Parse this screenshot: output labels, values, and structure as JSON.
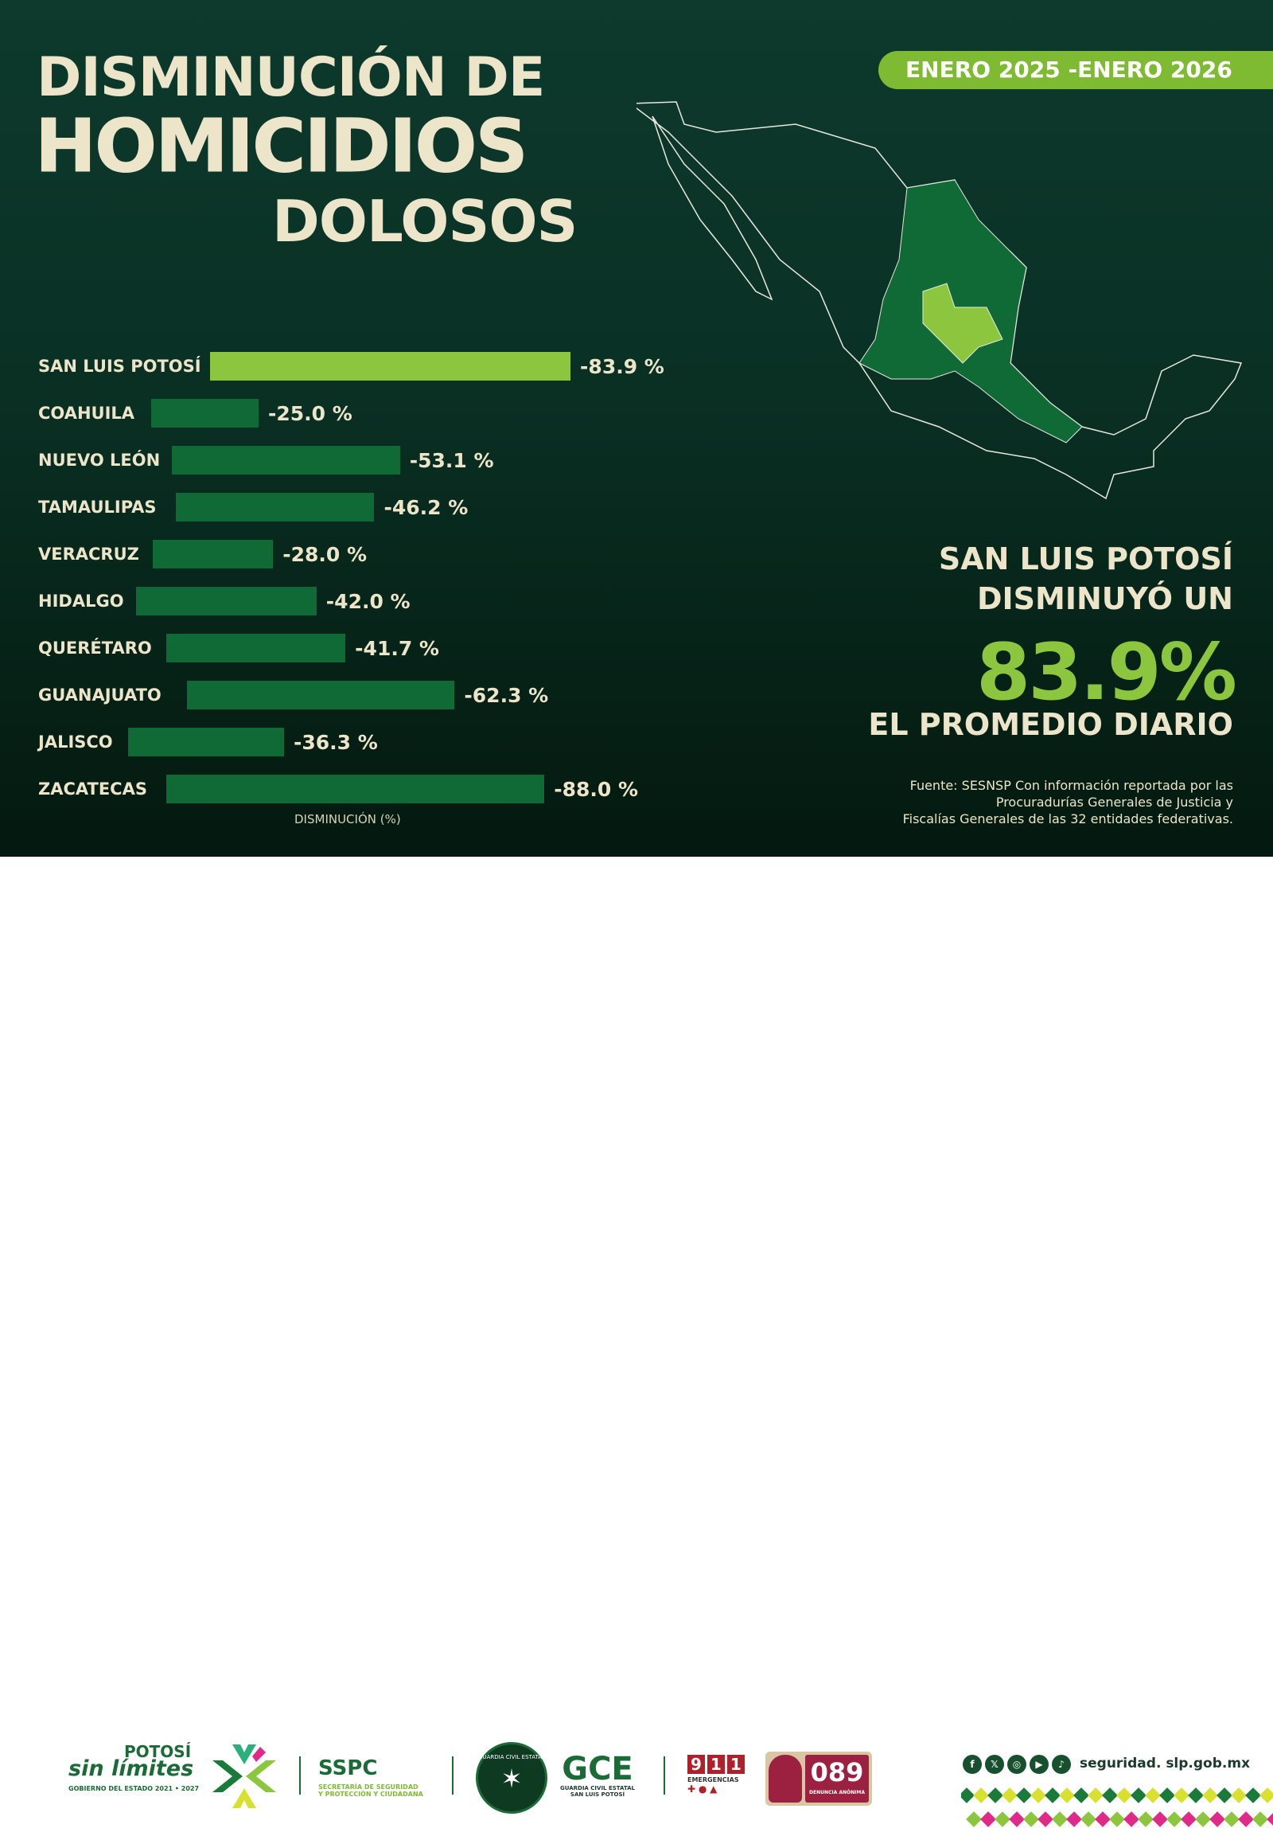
{
  "title": {
    "line1": "DISMINUCIÓN DE",
    "line2": "HOMICIDIOS",
    "line3": "DOLOSOS"
  },
  "period": "ENERO 2025 -ENERO 2026",
  "chart_data": {
    "type": "bar",
    "orientation": "horizontal",
    "categories": [
      "SAN LUIS POTOSÍ",
      "COAHUILA",
      "NUEVO LEÓN",
      "TAMAULIPAS",
      "VERACRUZ",
      "HIDALGO",
      "QUERÉTARO",
      "GUANAJUATO",
      "JALISCO",
      "ZACATECAS"
    ],
    "values": [
      -83.9,
      -25.0,
      -53.1,
      -46.2,
      -28.0,
      -42.0,
      -41.7,
      -62.3,
      -36.3,
      -88.0
    ],
    "labels": [
      "-83.9 %",
      "-25.0 %",
      "-53.1 %",
      "-46.2 %",
      "-28.0 %",
      "-42.0 %",
      "-41.7 %",
      "-62.3 %",
      "-36.3 %",
      "-88.0 %"
    ],
    "xlabel": "DISMINUCIÓN (%)",
    "colors": {
      "highlight": "#8cc63f",
      "default": "#0f6a35"
    }
  },
  "summary": {
    "line1": "SAN LUIS POTOSÍ",
    "line2": "DISMINUYÓ UN",
    "value": "83.9%",
    "line3": "EL PROMEDIO DIARIO"
  },
  "source": [
    "Fuente: SESNSP Con información reportada por las",
    "Procuradurías Generales de Justicia y",
    "Fiscalías Generales de las 32 entidades federativas."
  ],
  "footer": {
    "logo1": {
      "top": "POTOSÍ",
      "main": "sin límites",
      "sub": "GOBIERNO DEL ESTADO 2021 • 2027"
    },
    "sspc": {
      "title": "SSPC",
      "sub1": "SECRETARÍA DE SEGURIDAD",
      "sub2": "Y PROTECCIÓN Y CIUDADANA"
    },
    "gce": {
      "seal": "GUARDIA CIVIL ESTATAL",
      "title": "GCE",
      "sub1": "GUARDIA CIVIL ESTATAL",
      "sub2": "SAN LUIS POTOSÍ"
    },
    "e911": {
      "digits": [
        "9",
        "1",
        "1"
      ],
      "label": "EMERGENCIAS"
    },
    "e089": {
      "number": "089",
      "label": "DENUNCIA ANÓNIMA"
    },
    "social_icons": [
      "facebook-icon",
      "x-icon",
      "instagram-icon",
      "youtube-icon",
      "tiktok-icon"
    ],
    "website": "seguridad. slp.gob.mx"
  }
}
